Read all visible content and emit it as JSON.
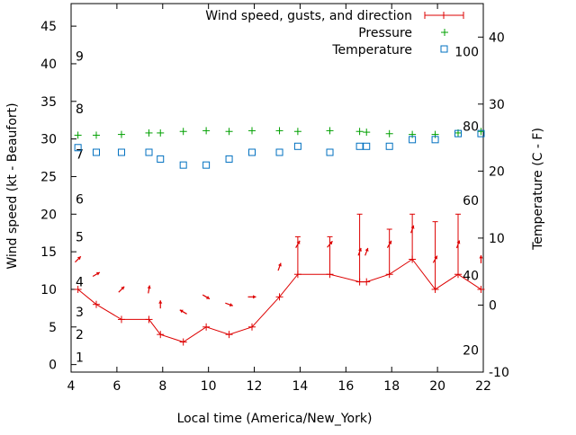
{
  "chart_data": {
    "type": "line",
    "xlabel": "Local time (America/New_York)",
    "ylabel_left": "Wind speed (kt - Beaufort)",
    "ylabel_right": "Temperature (C - F)",
    "xlim": [
      4,
      22
    ],
    "ylim_left": [
      -1,
      48
    ],
    "ylim_right": [
      -10,
      45
    ],
    "x_ticks": [
      4,
      6,
      8,
      10,
      12,
      14,
      16,
      18,
      20,
      22
    ],
    "y_left_ticks": [
      0,
      5,
      10,
      15,
      20,
      25,
      30,
      35,
      40,
      45
    ],
    "y_right_ticks": [
      -10,
      0,
      10,
      20,
      30,
      40
    ],
    "beaufort_labels": [
      {
        "label": "1",
        "wind": 1
      },
      {
        "label": "2",
        "wind": 4
      },
      {
        "label": "3",
        "wind": 7
      },
      {
        "label": "4",
        "wind": 11
      },
      {
        "label": "5",
        "wind": 17
      },
      {
        "label": "6",
        "wind": 22
      },
      {
        "label": "7",
        "wind": 28
      },
      {
        "label": "8",
        "wind": 34
      },
      {
        "label": "9",
        "wind": 41
      }
    ],
    "fahrenheit_labels": [
      {
        "label": "20",
        "temp": -6.7
      },
      {
        "label": "40",
        "temp": 4.4
      },
      {
        "label": "60",
        "temp": 15.6
      },
      {
        "label": "80",
        "temp": 26.7
      },
      {
        "label": "100",
        "temp": 37.8
      }
    ],
    "grid": false,
    "legend": "top-right",
    "colors": {
      "wind": "#dd0000",
      "pressure": "#00a000",
      "temperature": "#0070c0"
    },
    "series": [
      {
        "name": "Wind speed, gusts, and direction",
        "x": [
          4.3,
          5.1,
          6.2,
          7.4,
          7.9,
          8.9,
          9.9,
          10.9,
          11.9,
          13.1,
          13.9,
          15.3,
          16.6,
          16.9,
          17.9,
          18.9,
          19.9,
          20.9,
          21.9
        ],
        "values": [
          10,
          8,
          6,
          6,
          4,
          3,
          5,
          4,
          5,
          9,
          12,
          12,
          11,
          11,
          12,
          14,
          10,
          12,
          10
        ],
        "gusts": [
          null,
          null,
          null,
          null,
          null,
          null,
          null,
          null,
          null,
          null,
          17,
          17,
          20,
          null,
          18,
          20,
          19,
          20,
          null
        ],
        "direction_deg": [
          225,
          240,
          225,
          190,
          180,
          120,
          300,
          290,
          270,
          200,
          210,
          220,
          200,
          200,
          210,
          200,
          210,
          200,
          180
        ]
      },
      {
        "name": "Pressure",
        "x": [
          4.3,
          5.1,
          6.2,
          7.4,
          7.9,
          8.9,
          9.9,
          10.9,
          11.9,
          13.1,
          13.9,
          15.3,
          16.6,
          16.9,
          17.9,
          18.9,
          19.9,
          20.9,
          21.9
        ],
        "values": [
          30.5,
          30.5,
          30.6,
          30.8,
          30.8,
          31.0,
          31.1,
          31.0,
          31.1,
          31.1,
          31.0,
          31.1,
          31.0,
          30.9,
          30.7,
          30.6,
          30.6,
          30.8,
          31.0
        ]
      },
      {
        "name": "Temperature",
        "x": [
          4.3,
          5.1,
          6.2,
          7.4,
          7.9,
          8.9,
          9.9,
          10.9,
          11.9,
          13.1,
          13.9,
          15.3,
          16.6,
          16.9,
          17.9,
          18.9,
          19.9,
          20.9,
          21.9
        ],
        "values": [
          23.5,
          22.8,
          22.8,
          22.8,
          21.8,
          20.9,
          20.9,
          21.8,
          22.8,
          22.8,
          23.7,
          22.8,
          23.7,
          23.7,
          23.7,
          24.7,
          24.7,
          25.6,
          25.6
        ]
      }
    ]
  }
}
